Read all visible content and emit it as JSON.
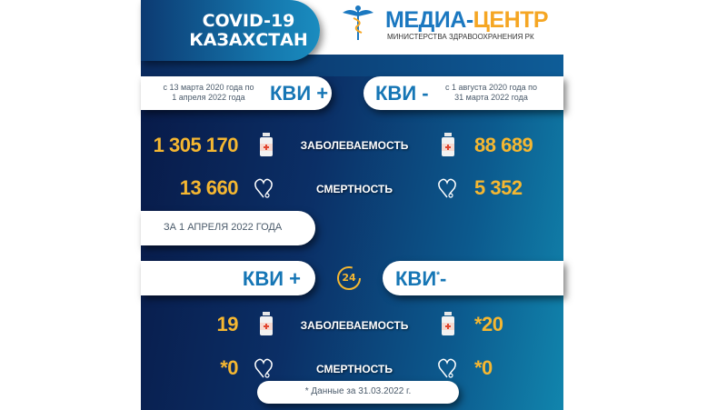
{
  "header": {
    "title_line1": "COVID-19",
    "title_line2": "КАЗАХСТАН"
  },
  "logo": {
    "name_part1": "МЕДИА-",
    "name_part2": "ЦЕНТР",
    "subtitle": "МИНИСТЕРСТВА ЗДРАВООХРАНЕНИЯ РК",
    "colors": {
      "blue": "#1b78c0",
      "orange": "#f5a623"
    }
  },
  "total": {
    "left": {
      "period_line1": "с 13 марта 2020 года по",
      "period_line2": "1 апреля 2022 года",
      "label": "КВИ +"
    },
    "right": {
      "period_line1": "с 1 августа 2020 года по",
      "period_line2": "31 марта 2022 года",
      "label": "КВИ -"
    },
    "morbidity": {
      "label": "ЗАБОЛЕВАЕМОСТЬ",
      "left": "1 305 170",
      "right": "88 689"
    },
    "mortality": {
      "label": "СМЕРТНОСТЬ",
      "left": "13 660",
      "right": "5 352"
    }
  },
  "daily": {
    "date_label": "ЗА 1 АПРЕЛЯ 2022 ГОДА",
    "left_label": "КВИ +",
    "right_label": "КВИ",
    "right_mark": "*",
    "right_sign": "-",
    "clock": "24",
    "morbidity": {
      "label": "ЗАБОЛЕВАЕМОСТЬ",
      "left": "19",
      "right": "*20"
    },
    "mortality": {
      "label": "СМЕРТНОСТЬ",
      "left": "*0",
      "right": "*0"
    },
    "footnote": "* Данные за 31.03.2022 г."
  },
  "colors": {
    "number": "#f5b731",
    "kvi": "#1676b5",
    "panel_dark": "#081a48",
    "panel_light": "#1185ad"
  }
}
